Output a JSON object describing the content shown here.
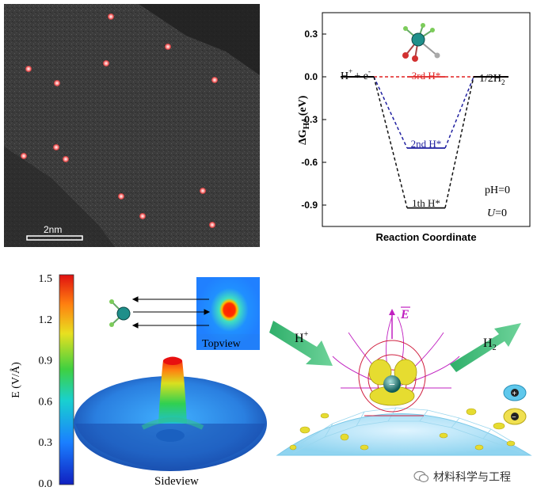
{
  "stem_image": {
    "scale_label": "2nm"
  },
  "energy_diagram": {
    "ylabel_main": "ΔG",
    "ylabel_sub": "H*",
    "ylabel_unit": "(eV)",
    "xlabel": "Reaction Coordinate",
    "yticks": [
      "0.3",
      "0.0",
      "-0.3",
      "-0.6",
      "-0.9"
    ],
    "start_label": "H",
    "start_label_sup": "+",
    "start_label_rest": "+ e",
    "start_label_sup2": "-",
    "end_label": "1/2H",
    "end_label_sub": "2",
    "level_3rd": "3rd H*",
    "level_2nd": "2nd H*",
    "level_1th": "1th H*",
    "ph_label": "pH=0",
    "u_label_italic": "U",
    "u_label_rest": "=0"
  },
  "chart_data": {
    "type": "line",
    "ylim": [
      -1.05,
      0.45
    ],
    "yticks": [
      0.3,
      0.0,
      -0.3,
      -0.6,
      -0.9
    ],
    "series": [
      {
        "name": "3rd H*",
        "color": "#e02020",
        "values": [
          0.0,
          0.0,
          0.0
        ]
      },
      {
        "name": "2nd H*",
        "color": "#2020a0",
        "values": [
          0.0,
          -0.5,
          0.0
        ]
      },
      {
        "name": "1th H*",
        "color": "#111111",
        "values": [
          0.0,
          -0.92,
          0.0
        ]
      }
    ]
  },
  "efield_panel": {
    "colorbar_ticks": [
      "1.5",
      "1.2",
      "0.9",
      "0.6",
      "0.3",
      "0.0"
    ],
    "colorbar_label": "E (V/Å)",
    "topview_label": "Topview",
    "sideview_label": "Sideview"
  },
  "scheme_panel": {
    "field_label": "E",
    "hplus_label": "H",
    "hplus_sup": "+",
    "h2_label": "H",
    "h2_sub": "2",
    "plus_legend": "+",
    "minus_legend": "−"
  },
  "footer": {
    "brand": "材料科学与工程"
  },
  "colors": {
    "level_red": "#e02020",
    "level_blue": "#2020a0",
    "level_black": "#111111",
    "field_magenta": "#c020c0",
    "arrow_green": "#3fbf7f"
  }
}
